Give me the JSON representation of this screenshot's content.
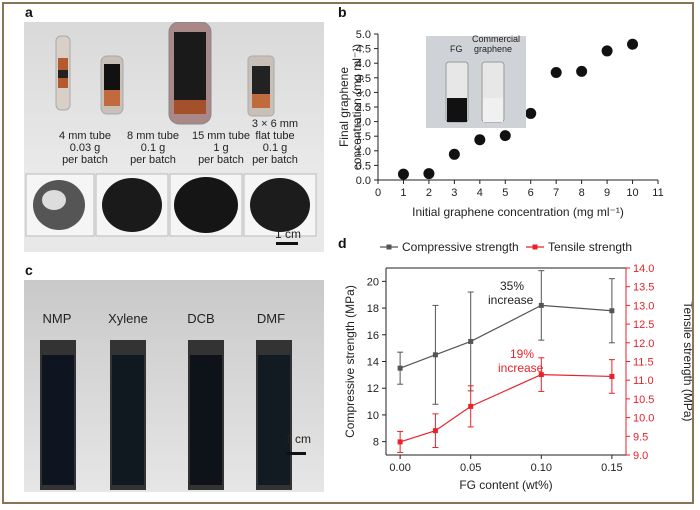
{
  "panels": {
    "a": {
      "label": "a",
      "tubes": [
        {
          "line1": "4 mm tube",
          "line2": "0.03 g",
          "line3": "per batch"
        },
        {
          "line1": "8 mm tube",
          "line2": "0.1 g",
          "line3": "per batch"
        },
        {
          "line1": "15 mm tube",
          "line2": "1 g",
          "line3": "per batch"
        },
        {
          "line0": "3 × 6 mm",
          "line1": "flat tube",
          "line2": "0.1 g",
          "line3": "per batch"
        }
      ],
      "scale": "1 cm"
    },
    "b": {
      "label": "b",
      "inset_fg": "FG",
      "inset_comm1": "Commercial",
      "inset_comm2": "graphene"
    },
    "c": {
      "label": "c",
      "solvents": [
        "NMP",
        "Xylene",
        "DCB",
        "DMF"
      ],
      "scale": "1 cm"
    },
    "d": {
      "label": "d",
      "note1_a": "35%",
      "note1_b": "increase",
      "note2_a": "19%",
      "note2_b": "increase"
    }
  },
  "chart_data": [
    {
      "type": "scatter",
      "panel": "b",
      "x": [
        1,
        2,
        3,
        4,
        5,
        6,
        7,
        8,
        9,
        10
      ],
      "y": [
        0.2,
        0.22,
        0.88,
        1.38,
        1.52,
        2.28,
        3.68,
        3.72,
        4.42,
        4.65
      ],
      "xlabel": "Initial graphene concentration (mg ml⁻¹)",
      "ylabel_line1": "Final graphene",
      "ylabel_line2": "concentration (mg ml⁻¹)",
      "xlim": [
        0,
        11
      ],
      "ylim": [
        0,
        5.0
      ],
      "xticks": [
        "0",
        "1",
        "2",
        "3",
        "4",
        "5",
        "6",
        "7",
        "8",
        "9",
        "10",
        "11"
      ],
      "yticks": [
        "0.0",
        "0.5",
        "1.0",
        "1.5",
        "2.0",
        "2.5",
        "3.0",
        "3.5",
        "4.0",
        "4.5",
        "5.0"
      ]
    },
    {
      "type": "line",
      "panel": "d",
      "x": [
        0.0,
        0.025,
        0.05,
        0.1,
        0.15
      ],
      "xticks": [
        "0.00",
        "0.05",
        "0.10",
        "0.15"
      ],
      "xlabel": "FG content (wt%)",
      "ylabel_left": "Compressive strength (MPa)",
      "ylabel_right": "Tensile strength (MPa)",
      "ylim_left": [
        7,
        21
      ],
      "ylim_right": [
        9.0,
        14.0
      ],
      "yticks_left": [
        "8",
        "10",
        "12",
        "14",
        "16",
        "18",
        "20"
      ],
      "yticks_right": [
        "9.0",
        "9.5",
        "10.0",
        "10.5",
        "11.0",
        "11.5",
        "12.0",
        "12.5",
        "13.0",
        "13.5",
        "14.0"
      ],
      "series": [
        {
          "name": "Compressive strength",
          "axis": "left",
          "color": "#555555",
          "values": [
            13.5,
            14.5,
            15.5,
            18.2,
            17.8
          ],
          "err": [
            1.2,
            3.7,
            3.7,
            2.6,
            2.4
          ]
        },
        {
          "name": "Tensile strength",
          "axis": "right",
          "color": "#e8222a",
          "values": [
            9.35,
            9.65,
            10.3,
            11.15,
            11.1
          ],
          "err": [
            0.28,
            0.45,
            0.55,
            0.45,
            0.45
          ]
        }
      ]
    }
  ]
}
